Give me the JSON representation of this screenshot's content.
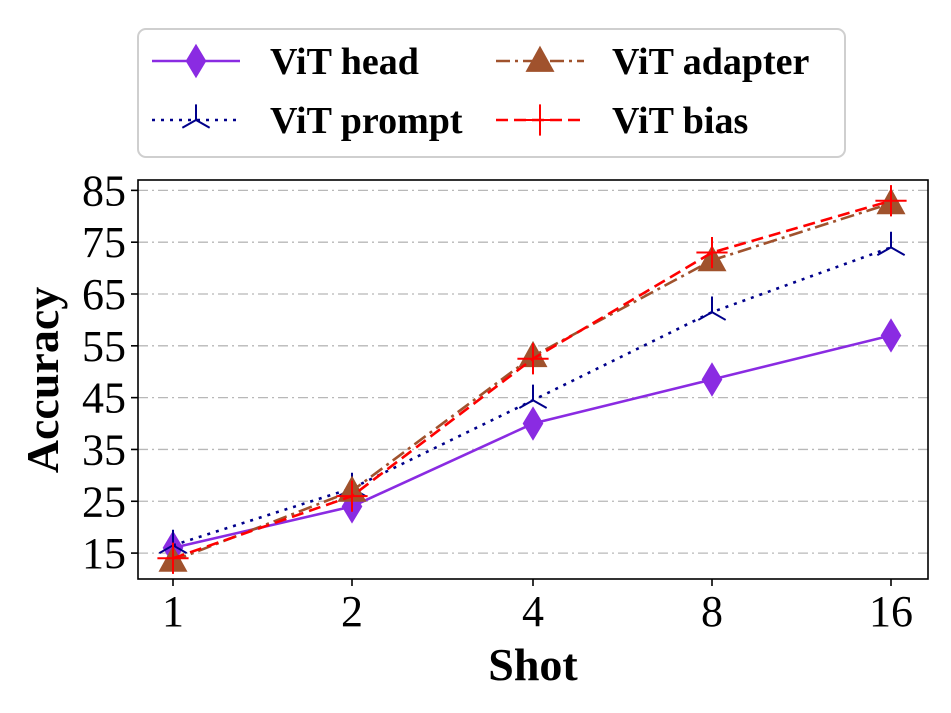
{
  "chart_data": {
    "type": "line",
    "categories": [
      "1",
      "2",
      "4",
      "8",
      "16"
    ],
    "xlabel": "Shot",
    "ylabel": "Accuracy",
    "ylim": [
      10,
      87
    ],
    "yticks": [
      15,
      25,
      35,
      45,
      55,
      65,
      75,
      85
    ],
    "grid": "horizontal dash-dot",
    "legend_position": "top",
    "series": [
      {
        "name": "ViT head",
        "color": "#8a2be2",
        "style": "solid",
        "marker": "diamond",
        "values": [
          16,
          24,
          40,
          48.5,
          57
        ]
      },
      {
        "name": "ViT prompt",
        "color": "#00008b",
        "style": "dotted",
        "marker": "tri_down",
        "values": [
          16.5,
          27.5,
          44.5,
          61.5,
          74
        ]
      },
      {
        "name": "ViT adapter",
        "color": "#a0522d",
        "style": "dashdot",
        "marker": "triangle_up",
        "values": [
          13.5,
          27,
          53,
          71.5,
          82.5
        ]
      },
      {
        "name": "ViT bias",
        "color": "#ff0000",
        "style": "dashed",
        "marker": "plus",
        "values": [
          14,
          26,
          52.5,
          73,
          83
        ]
      }
    ]
  }
}
